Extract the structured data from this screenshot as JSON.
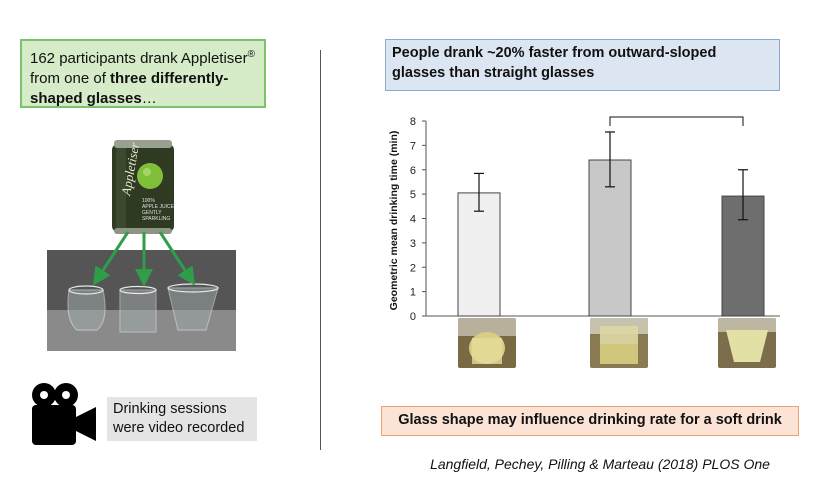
{
  "intro": {
    "line1": "162 participants drank Appletiser",
    "sup": "®",
    "line2": "from one of ",
    "bold": "three differently-shaped glasses",
    "ellipsis": "…"
  },
  "can": {
    "brand": "Appletiser",
    "text1": "100%",
    "text2": "APPLE JUICE",
    "text3": "GENTLY",
    "text4": "SPARKLING"
  },
  "video_note": {
    "line1": "Drinking sessions",
    "line2": "were video recorded"
  },
  "headline": "People drank ~20% faster from outward-sloped glasses than straight glasses",
  "conclusion": "Glass shape may influence drinking rate for a soft drink",
  "citation": "Langfield, Pechey, Pilling & Marteau (2018) PLOS One",
  "colors": {
    "bar1": "#f0f0f0",
    "bar2": "#c8c8c8",
    "bar3": "#6e6e6e",
    "intro_bg": "#d6ecc8",
    "headline_bg": "#dce6f2",
    "conclusion_bg": "#fbe4d6"
  },
  "chart_data": {
    "type": "bar",
    "ylabel": "Geometric mean drinking time (min)",
    "ylim": [
      0,
      8
    ],
    "yticks": [
      0,
      1,
      2,
      3,
      4,
      5,
      6,
      7,
      8
    ],
    "categories": [
      "",
      "",
      ""
    ],
    "values": [
      5.05,
      6.4,
      4.92
    ],
    "error_low": [
      4.3,
      5.3,
      3.95
    ],
    "error_high": [
      5.85,
      7.55,
      6.0
    ],
    "significance": {
      "between": [
        1,
        2
      ],
      "label": "*"
    },
    "grid": false
  }
}
